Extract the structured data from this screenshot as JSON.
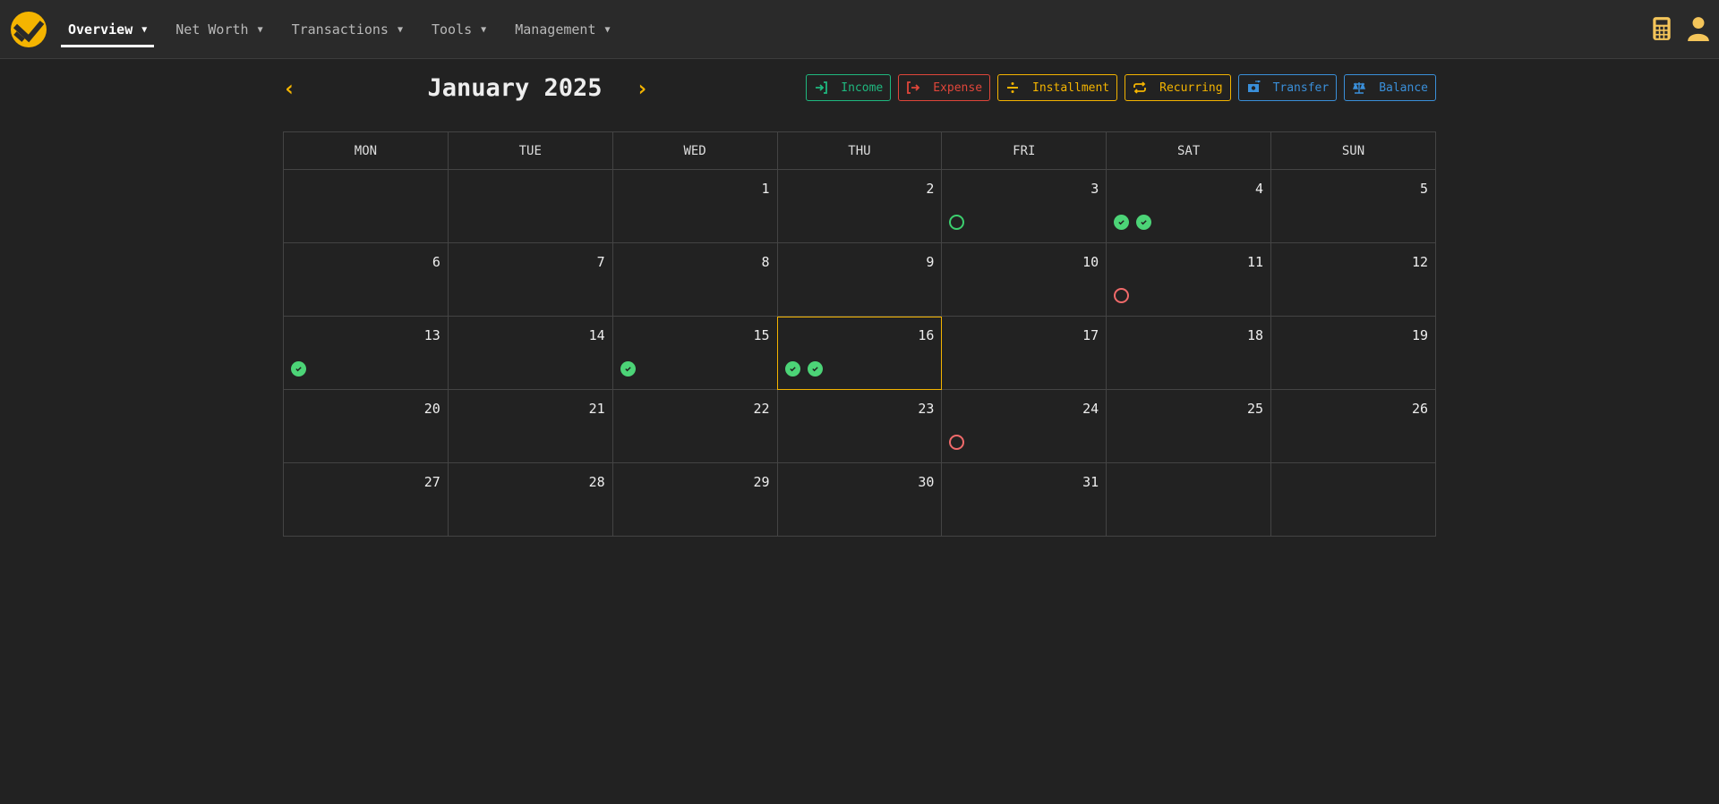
{
  "nav": {
    "items": [
      {
        "label": "Overview",
        "active": true
      },
      {
        "label": "Net Worth"
      },
      {
        "label": "Transactions"
      },
      {
        "label": "Tools"
      },
      {
        "label": "Management"
      }
    ],
    "right_icons": [
      "calculator-icon",
      "user-icon"
    ],
    "accent": "#f4b400"
  },
  "calendar": {
    "title": "January 2025",
    "buttons": [
      {
        "label": "Income",
        "icon": "sign-in-icon",
        "color": "#1fb87f"
      },
      {
        "label": "Expense",
        "icon": "sign-out-icon",
        "color": "#e0463a"
      },
      {
        "label": "Installment",
        "icon": "divide-icon",
        "color": "#f4b400"
      },
      {
        "label": "Recurring",
        "icon": "repeat-icon",
        "color": "#f4b400"
      },
      {
        "label": "Transfer",
        "icon": "money-transfer-icon",
        "color": "#3a8fd9"
      },
      {
        "label": "Balance",
        "icon": "scale-balance-icon",
        "color": "#3a8fd9"
      }
    ],
    "weekdays": [
      "MON",
      "TUE",
      "WED",
      "THU",
      "FRI",
      "SAT",
      "SUN"
    ],
    "today": 16,
    "weeks": [
      [
        null,
        null,
        {
          "d": "1"
        },
        {
          "d": "2"
        },
        {
          "d": "3",
          "m": [
            "pending-income"
          ]
        },
        {
          "d": "4",
          "m": [
            "done",
            "done"
          ]
        },
        {
          "d": "5"
        }
      ],
      [
        {
          "d": "6"
        },
        {
          "d": "7"
        },
        {
          "d": "8"
        },
        {
          "d": "9"
        },
        {
          "d": "10"
        },
        {
          "d": "11",
          "m": [
            "pending-expense"
          ]
        },
        {
          "d": "12"
        }
      ],
      [
        {
          "d": "13",
          "m": [
            "done"
          ]
        },
        {
          "d": "14"
        },
        {
          "d": "15",
          "m": [
            "done"
          ]
        },
        {
          "d": "16",
          "m": [
            "done",
            "done"
          ]
        },
        {
          "d": "17"
        },
        {
          "d": "18"
        },
        {
          "d": "19"
        }
      ],
      [
        {
          "d": "20"
        },
        {
          "d": "21"
        },
        {
          "d": "22"
        },
        {
          "d": "23"
        },
        {
          "d": "24",
          "m": [
            "pending-expense"
          ]
        },
        {
          "d": "25"
        },
        {
          "d": "26"
        }
      ],
      [
        {
          "d": "27"
        },
        {
          "d": "28"
        },
        {
          "d": "29"
        },
        {
          "d": "30"
        },
        {
          "d": "31"
        },
        null,
        null
      ]
    ]
  }
}
